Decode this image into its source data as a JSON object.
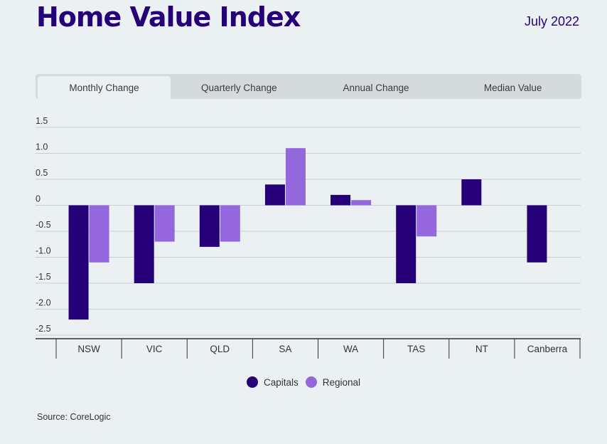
{
  "header": {
    "title": "Home Value Index",
    "date": "July 2022"
  },
  "tabs": [
    {
      "label": "Monthly Change",
      "active": true
    },
    {
      "label": "Quarterly Change",
      "active": false
    },
    {
      "label": "Annual Change",
      "active": false
    },
    {
      "label": "Median Value",
      "active": false
    }
  ],
  "colors": {
    "capitals": "#250079",
    "regional": "#9468dc",
    "grid": "#c9ced2",
    "axis": "#333333"
  },
  "chart_data": {
    "type": "bar",
    "title": "",
    "xlabel": "",
    "ylabel": "",
    "categories": [
      "NSW",
      "VIC",
      "QLD",
      "SA",
      "WA",
      "TAS",
      "NT",
      "Canberra"
    ],
    "series": [
      {
        "name": "Capitals",
        "values": [
          -2.2,
          -1.5,
          -0.8,
          0.4,
          0.2,
          -1.5,
          0.5,
          -1.1
        ]
      },
      {
        "name": "Regional",
        "values": [
          -1.1,
          -0.7,
          -0.7,
          1.1,
          0.1,
          -0.6,
          null,
          null
        ]
      }
    ],
    "ylim": [
      -2.5,
      1.5
    ],
    "yticks": [
      1.5,
      1.0,
      0.5,
      0,
      -0.5,
      -1.0,
      -1.5,
      -2.0,
      -2.5
    ],
    "ytick_labels": [
      "1.5",
      "1.0",
      "0.5",
      "0",
      "-0.5",
      "-1.0",
      "-1.5",
      "-2.0",
      "-2.5"
    ],
    "grid": true,
    "legend": "bottom-center"
  },
  "source": "Source: CoreLogic"
}
